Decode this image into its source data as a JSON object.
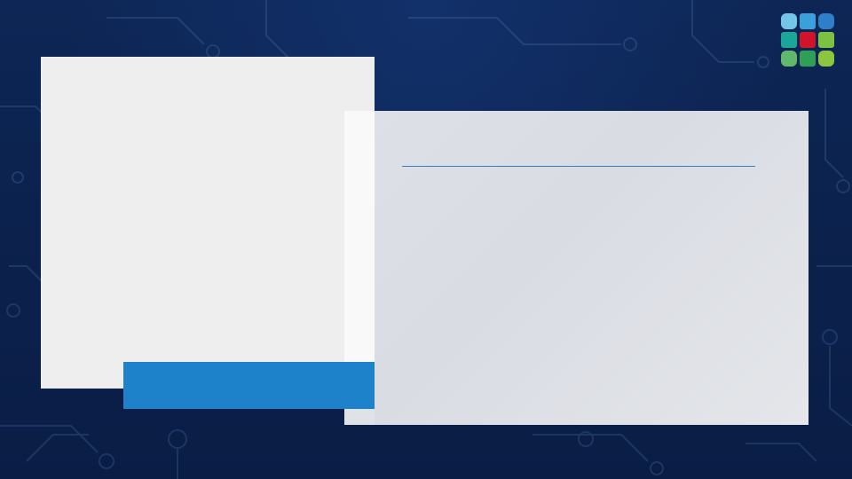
{
  "slide": {
    "title": "",
    "body": "",
    "caption": ""
  },
  "colors": {
    "background": "#0b2149",
    "accent_blue": "#1e82cb",
    "divider": "#2f7fc8",
    "left_panel": "#eeeeee",
    "right_panel": "#dde0e6"
  },
  "logo": {
    "icon": "grid-logo-icon"
  }
}
